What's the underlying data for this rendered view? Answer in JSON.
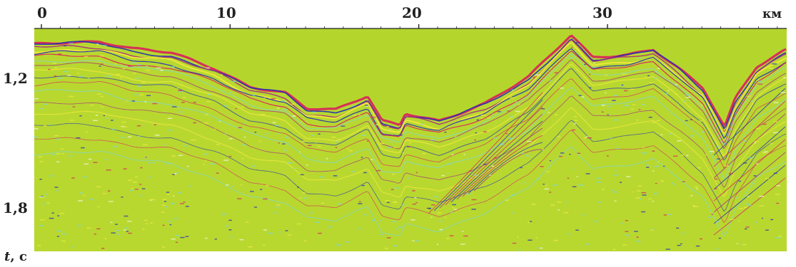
{
  "figure": {
    "x_axis": {
      "ticks": [
        "0",
        "10",
        "20",
        "30"
      ],
      "unit": "км"
    },
    "y_axis": {
      "ticks": [
        "1,2",
        "1,8"
      ],
      "label_var": "t",
      "label_unit": ", с"
    }
  },
  "colors": {
    "background": "#b8d830",
    "highlight": "#f2ea3c",
    "red": "#d8285a",
    "blue": "#2630b0",
    "magenta": "#a8307a",
    "cyan": "#7ad8e4",
    "white": "#f4f6e4"
  }
}
